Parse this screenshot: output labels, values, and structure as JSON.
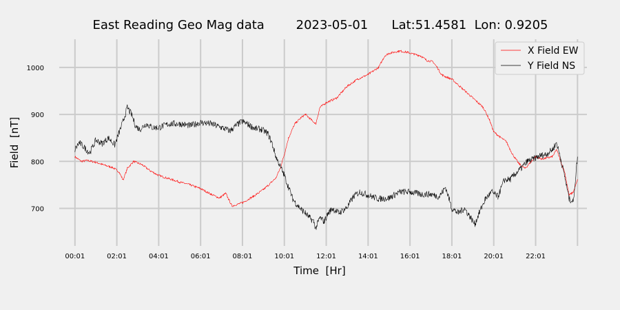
{
  "chart_data": {
    "type": "line",
    "title": "East Reading Geo Mag data        2023-05-01      Lat:51.4581  Lon: 0.9205",
    "xlabel": "Time  [Hr]",
    "ylabel": "Field  [nT]",
    "x_tick_labels": [
      "00:01",
      "02:01",
      "04:01",
      "06:01",
      "08:01",
      "10:01",
      "12:01",
      "14:01",
      "16:01",
      "18:01",
      "20:01",
      "22:01"
    ],
    "x_tick_hours": [
      0,
      2,
      4,
      6,
      8,
      10,
      12,
      14,
      16,
      18,
      20,
      22
    ],
    "x_range_hours": [
      -0.75,
      24.45
    ],
    "y_ticks": [
      700,
      800,
      900,
      1000
    ],
    "ylim": [
      620,
      1060
    ],
    "grid": true,
    "legend_position": "upper right",
    "x_unit": "hours since 00:01",
    "series": [
      {
        "name": "X Field EW",
        "color": "#ff0000",
        "x": [
          0,
          0.3,
          0.6,
          1,
          1.4,
          1.8,
          2.1,
          2.3,
          2.5,
          2.8,
          3.2,
          3.6,
          4,
          4.5,
          5,
          5.5,
          6,
          6.5,
          6.9,
          7.2,
          7.5,
          8,
          8.5,
          9,
          9.3,
          9.6,
          9.8,
          10,
          10.2,
          10.5,
          10.8,
          11,
          11.3,
          11.5,
          11.7,
          12,
          12.5,
          13,
          13.5,
          14,
          14.5,
          14.8,
          15,
          15.5,
          15.9,
          16.2,
          16.5,
          16.8,
          17.1,
          17.3,
          17.5,
          17.7,
          18,
          18.5,
          19,
          19.5,
          19.8,
          20,
          20.3,
          20.6,
          20.9,
          21.2,
          21.5,
          21.8,
          22,
          22.3,
          22.6,
          22.8,
          23,
          23.2,
          23.4,
          23.6,
          23.8,
          24
        ],
        "values": [
          810,
          800,
          802,
          798,
          792,
          787,
          778,
          760,
          785,
          800,
          793,
          780,
          770,
          763,
          756,
          750,
          742,
          730,
          722,
          732,
          705,
          712,
          725,
          740,
          752,
          765,
          785,
          815,
          850,
          880,
          893,
          900,
          888,
          880,
          915,
          925,
          935,
          960,
          975,
          985,
          1000,
          1025,
          1030,
          1035,
          1032,
          1028,
          1025,
          1015,
          1012,
          1000,
          985,
          980,
          975,
          955,
          935,
          915,
          888,
          863,
          852,
          842,
          815,
          795,
          785,
          800,
          810,
          805,
          808,
          810,
          825,
          800,
          775,
          728,
          735,
          760
        ]
      },
      {
        "name": "Y Field NS",
        "color": "#000000",
        "x": [
          0,
          0.2,
          0.4,
          0.7,
          1,
          1.3,
          1.6,
          1.9,
          2.1,
          2.3,
          2.5,
          2.7,
          2.9,
          3.1,
          3.4,
          3.7,
          4,
          4.5,
          5,
          5.5,
          6,
          6.5,
          7,
          7.4,
          7.8,
          8,
          8.3,
          8.6,
          8.9,
          9.2,
          9.4,
          9.6,
          9.8,
          10,
          10.2,
          10.4,
          10.6,
          10.8,
          11,
          11.2,
          11.4,
          11.5,
          11.7,
          11.9,
          12.1,
          12.3,
          12.6,
          13,
          13.3,
          13.6,
          14,
          14.5,
          15,
          15.5,
          16,
          16.5,
          17,
          17.4,
          17.7,
          18,
          18.3,
          18.6,
          18.9,
          19.1,
          19.3,
          19.6,
          19.9,
          20.2,
          20.5,
          20.8,
          21,
          21.3,
          21.6,
          21.9,
          22.2,
          22.5,
          22.8,
          23,
          23.2,
          23.4,
          23.6,
          23.8,
          24
        ],
        "values": [
          825,
          840,
          832,
          818,
          845,
          838,
          850,
          835,
          860,
          885,
          915,
          900,
          875,
          868,
          880,
          872,
          872,
          880,
          880,
          876,
          883,
          880,
          872,
          865,
          880,
          885,
          878,
          870,
          868,
          860,
          840,
          810,
          790,
          770,
          745,
          720,
          708,
          698,
          690,
          680,
          672,
          658,
          680,
          672,
          690,
          700,
          690,
          702,
          725,
          735,
          728,
          720,
          722,
          735,
          735,
          730,
          730,
          725,
          745,
          700,
          690,
          700,
          680,
          666,
          690,
          720,
          735,
          725,
          760,
          762,
          772,
          785,
          800,
          805,
          812,
          815,
          825,
          840,
          805,
          765,
          720,
          715,
          810
        ]
      }
    ]
  }
}
